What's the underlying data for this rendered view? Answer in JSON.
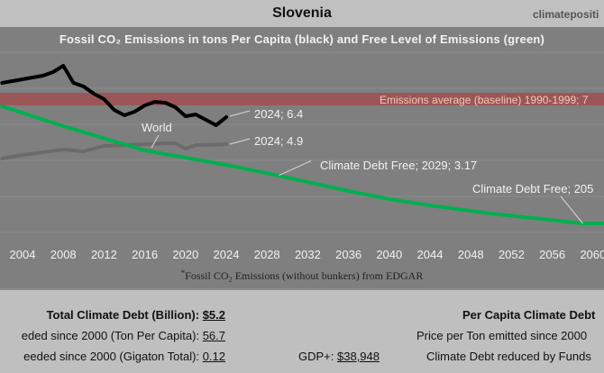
{
  "header": {
    "country": "Slovenia",
    "site": "climatepositi"
  },
  "chart_data": {
    "type": "line",
    "title": "Fossil CO₂ Emissions in tons Per Capita (black) and Free Level of Emissions (green)",
    "source_note": "Fossil CO₂ Emissions (without bunkers) from EDGAR",
    "source_mark": "*",
    "x_ticks": [
      "2000",
      "2004",
      "2008",
      "2012",
      "2016",
      "2020",
      "2024",
      "2028",
      "2032",
      "2036",
      "2040",
      "2044",
      "2048",
      "2052",
      "2056",
      "2060"
    ],
    "xlim": [
      1998,
      2062
    ],
    "ylim": [
      0,
      10
    ],
    "grid": true,
    "series": [
      {
        "key": "country",
        "color": "#000000",
        "x": [
          2002,
          2003,
          2004,
          2005,
          2006,
          2007,
          2008,
          2009,
          2010,
          2011,
          2012,
          2013,
          2014,
          2015,
          2016,
          2017,
          2018,
          2019,
          2020,
          2021,
          2022,
          2023,
          2024
        ],
        "y": [
          8.3,
          8.4,
          8.5,
          8.6,
          8.7,
          8.9,
          9.25,
          8.3,
          8.1,
          7.7,
          7.4,
          6.8,
          6.5,
          6.7,
          7.05,
          7.25,
          7.2,
          6.95,
          6.45,
          6.55,
          6.25,
          5.95,
          6.4
        ]
      },
      {
        "key": "world",
        "name": "World",
        "color": "#6b6b6b",
        "x": [
          2002,
          2004,
          2006,
          2008,
          2009,
          2010,
          2012,
          2014,
          2016,
          2018,
          2019,
          2020,
          2021,
          2022,
          2024
        ],
        "y": [
          4.1,
          4.3,
          4.45,
          4.6,
          4.55,
          4.5,
          4.8,
          4.85,
          4.9,
          4.95,
          4.95,
          4.65,
          4.85,
          4.85,
          4.9
        ]
      },
      {
        "key": "free",
        "color": "#00b050",
        "x": [
          2002,
          2008,
          2016,
          2024,
          2029,
          2036,
          2040,
          2044,
          2050,
          2055,
          2059,
          2062
        ],
        "y": [
          7.0,
          5.9,
          4.55,
          3.75,
          3.17,
          2.3,
          1.85,
          1.5,
          1.05,
          0.75,
          0.5,
          0.5
        ]
      }
    ],
    "baseline_band": {
      "label": "Emissions average (baseline) 1990-1999; 7",
      "value": 7.4,
      "color": "#a05050"
    },
    "annotations": [
      {
        "text": "2024; 6.4",
        "x": 2024,
        "y": 6.4
      },
      {
        "text": "2024; 4.9",
        "x": 2024,
        "y": 4.9
      },
      {
        "text": "World",
        "x": 2016,
        "y": 4.9
      },
      {
        "text": "Climate Debt Free; 2029; 3.17",
        "x": 2029,
        "y": 3.17
      },
      {
        "text": "Climate Debt Free; 205",
        "x": 2059,
        "y": 0.5
      }
    ]
  },
  "summary": {
    "total_label": "Total Climate Debt (Billion):",
    "total_value": "$5.2",
    "ton_label": "eded since 2000 (Ton Per Capita):",
    "ton_value": "56.7",
    "gigaton_label": "eeded since 2000 (Gigaton Total):",
    "gigaton_value": "0.12",
    "gdp_label": "GDP+:",
    "gdp_value": "$38,948",
    "per_capita_label": "Per Capita Climate Debt",
    "price_label": "Price per Ton emitted since 2000",
    "funds_label": "Climate Debt reduced by Funds"
  }
}
